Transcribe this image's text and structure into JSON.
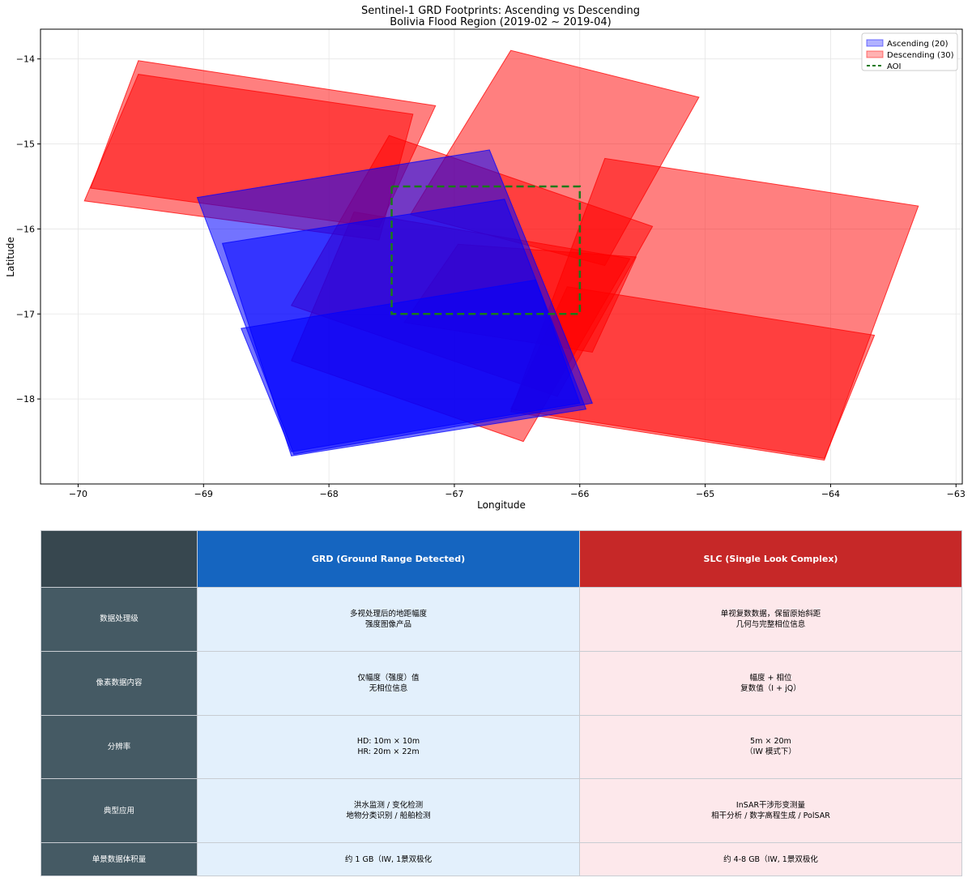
{
  "chart_data": {
    "type": "map-footprints",
    "title": "Sentinel-1 GRD Footprints: Ascending vs Descending",
    "subtitle": "Bolivia Flood Region (2019-02 ~ 2019-04)",
    "xlabel": "Longitude",
    "ylabel": "Latitude",
    "xlim": [
      -70.3,
      -62.95
    ],
    "ylim": [
      -19.0,
      -13.65
    ],
    "xticks": [
      -70,
      -69,
      -68,
      -67,
      -66,
      -65,
      -64,
      -63
    ],
    "yticks": [
      -14,
      -15,
      -16,
      -17,
      -18
    ],
    "grid": true,
    "legend_position": "upper right",
    "legend": [
      {
        "label": "Ascending (20)",
        "color": "#0000ff",
        "kind": "patch"
      },
      {
        "label": "Descending (30)",
        "color": "#ff0000",
        "kind": "patch"
      },
      {
        "label": "AOI",
        "color": "#1a7a1a",
        "kind": "dashed-line"
      }
    ],
    "aoi": {
      "lon_min": -67.5,
      "lon_max": -66.0,
      "lat_min": -17.0,
      "lat_max": -15.5
    },
    "footprints": [
      {
        "orbit": "descending",
        "coords": [
          [
            -69.95,
            -15.67
          ],
          [
            -69.52,
            -14.18
          ],
          [
            -67.33,
            -14.65
          ],
          [
            -67.6,
            -16.13
          ]
        ]
      },
      {
        "orbit": "descending",
        "coords": [
          [
            -69.9,
            -15.52
          ],
          [
            -69.52,
            -14.02
          ],
          [
            -67.15,
            -14.55
          ],
          [
            -67.6,
            -15.98
          ]
        ]
      },
      {
        "orbit": "descending",
        "coords": [
          [
            -67.35,
            -15.83
          ],
          [
            -66.55,
            -13.9
          ],
          [
            -65.05,
            -14.45
          ],
          [
            -65.8,
            -16.43
          ]
        ]
      },
      {
        "orbit": "descending",
        "coords": [
          [
            -68.3,
            -16.9
          ],
          [
            -67.52,
            -14.9
          ],
          [
            -65.42,
            -15.97
          ],
          [
            -66.18,
            -17.97
          ]
        ]
      },
      {
        "orbit": "descending",
        "coords": [
          [
            -68.3,
            -17.55
          ],
          [
            -67.8,
            -15.8
          ],
          [
            -65.6,
            -16.35
          ],
          [
            -66.45,
            -18.5
          ]
        ]
      },
      {
        "orbit": "descending",
        "coords": [
          [
            -67.4,
            -17.1
          ],
          [
            -66.97,
            -16.18
          ],
          [
            -65.55,
            -16.33
          ],
          [
            -65.9,
            -17.45
          ]
        ]
      },
      {
        "orbit": "descending",
        "coords": [
          [
            -66.55,
            -18.15
          ],
          [
            -65.8,
            -15.17
          ],
          [
            -63.3,
            -15.73
          ],
          [
            -64.05,
            -18.72
          ]
        ]
      },
      {
        "orbit": "descending",
        "coords": [
          [
            -66.55,
            -18.12
          ],
          [
            -66.1,
            -16.68
          ],
          [
            -63.65,
            -17.25
          ],
          [
            -64.05,
            -18.7
          ]
        ]
      },
      {
        "orbit": "ascending",
        "coords": [
          [
            -68.85,
            -16.17
          ],
          [
            -66.6,
            -15.65
          ],
          [
            -65.95,
            -18.12
          ],
          [
            -68.3,
            -18.67
          ]
        ]
      },
      {
        "orbit": "ascending",
        "coords": [
          [
            -69.05,
            -15.63
          ],
          [
            -66.72,
            -15.07
          ],
          [
            -65.9,
            -18.05
          ],
          [
            -68.28,
            -18.65
          ]
        ]
      },
      {
        "orbit": "ascending",
        "coords": [
          [
            -68.7,
            -17.17
          ],
          [
            -66.35,
            -16.6
          ],
          [
            -66.0,
            -18.05
          ],
          [
            -68.3,
            -18.62
          ]
        ]
      }
    ]
  },
  "table": {
    "corner": "",
    "columns": [
      "GRD (Ground Range Detected)",
      "SLC (Single Look Complex)"
    ],
    "rows": [
      {
        "label": "数据处理级",
        "grd": "多视处理后的地距幅度\n强度图像产品",
        "slc": "单视复数数据，保留原始斜距\n几何与完整相位信息"
      },
      {
        "label": "像素数据内容",
        "grd": "仅幅度（强度）值\n无相位信息",
        "slc": "幅度 + 相位\n复数值（I + jQ）"
      },
      {
        "label": "分辨率",
        "grd": "HD: 10m × 10m\nHR: 20m × 22m",
        "slc": "5m × 20m\n（IW 模式下）"
      },
      {
        "label": "典型应用",
        "grd": "洪水监测 / 变化检测\n地物分类识别 / 船舶检测",
        "slc": "InSAR干涉形变测量\n相干分析 / 数字高程生成 / PolSAR"
      },
      {
        "label": "单景数据体积量",
        "grd": "约 1 GB（IW, 1景双极化",
        "slc": "约 4-8 GB（IW, 1景双极化"
      }
    ]
  }
}
